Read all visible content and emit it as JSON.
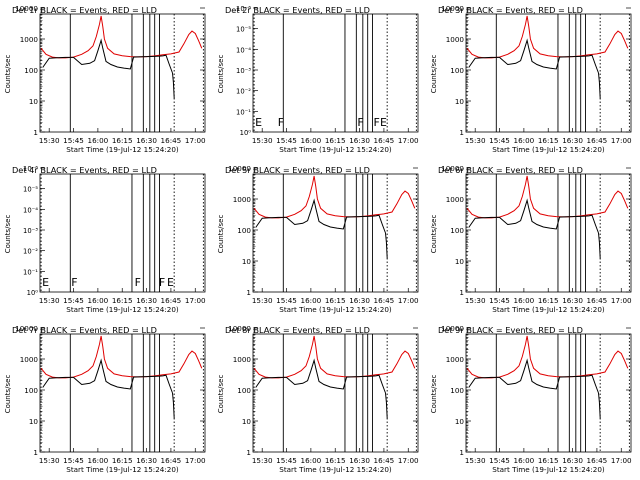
{
  "chart_data": [
    {
      "type": "line",
      "panel": 1,
      "title": "Det 1r BLACK = Events, RED = LLD",
      "ylabel": "Counts/sec",
      "xlabel": "Start Time (19-Jul-12 15:24:20)",
      "x_ticks": [
        "15:30",
        "15:45",
        "16:00",
        "16:15",
        "16:30",
        "16:45",
        "17:00"
      ],
      "y_ticks": [
        "1",
        "10",
        "100",
        "1000",
        "10000"
      ],
      "y_scale": "log",
      "ylim": [
        1,
        10000
      ],
      "xlim": [
        "15:24:20",
        "17:05"
      ],
      "has_data": true,
      "flags": [],
      "series": [
        {
          "name": "Events",
          "color": "#000000"
        },
        {
          "name": "LLD",
          "color": "#e00000"
        }
      ]
    },
    {
      "type": "line",
      "panel": 2,
      "title": "Det 2r BLACK = Events, RED = LLD",
      "ylabel": "Counts/sec",
      "xlabel": "Start Time (19-Jul-12 15:24:20)",
      "x_ticks": [
        "15:30",
        "15:45",
        "16:00",
        "16:15",
        "16:30",
        "16:45",
        "17:00"
      ],
      "y_ticks": [
        "10⁰",
        "10⁻¹",
        "10⁻²",
        "10⁻³",
        "10⁻⁴",
        "10⁻⁵",
        "10⁻⁶"
      ],
      "y_scale": "log",
      "has_data": false,
      "flags": [
        {
          "label": "E",
          "x": "15:25"
        },
        {
          "label": "F",
          "x": "15:39"
        },
        {
          "label": "F",
          "x": "16:28"
        },
        {
          "label": "F",
          "x": "16:38"
        },
        {
          "label": "E",
          "x": "16:42"
        }
      ],
      "series": []
    },
    {
      "type": "line",
      "panel": 3,
      "title": "Det 3r BLACK = Events, RED = LLD",
      "ylabel": "Counts/sec",
      "xlabel": "Start Time (19-Jul-12 15:24:20)",
      "x_ticks": [
        "15:30",
        "15:45",
        "16:00",
        "16:15",
        "16:30",
        "16:45",
        "17:00"
      ],
      "y_ticks": [
        "1",
        "10",
        "100",
        "1000",
        "10000"
      ],
      "y_scale": "log",
      "ylim": [
        1,
        10000
      ],
      "has_data": true,
      "flags": [],
      "series": [
        {
          "name": "Events",
          "color": "#000000"
        },
        {
          "name": "LLD",
          "color": "#e00000"
        }
      ]
    },
    {
      "type": "line",
      "panel": 4,
      "title": "Det 4r BLACK = Events, RED = LLD",
      "ylabel": "Counts/sec",
      "xlabel": "Start Time (19-Jul-12 15:24:20)",
      "x_ticks": [
        "15:30",
        "15:45",
        "16:00",
        "16:15",
        "16:30",
        "16:45",
        "17:00"
      ],
      "y_ticks": [
        "10⁰",
        "10⁻¹",
        "10⁻²",
        "10⁻³",
        "10⁻⁴",
        "10⁻⁵",
        "10⁻⁶"
      ],
      "y_scale": "log",
      "has_data": false,
      "flags": [
        {
          "label": "E",
          "x": "15:25"
        },
        {
          "label": "F",
          "x": "15:43"
        },
        {
          "label": "F",
          "x": "16:22"
        },
        {
          "label": "F",
          "x": "16:37"
        },
        {
          "label": "E",
          "x": "16:42"
        }
      ],
      "series": []
    },
    {
      "type": "line",
      "panel": 5,
      "title": "Det 5r BLACK = Events, RED = LLD",
      "ylabel": "Counts/sec",
      "xlabel": "Start Time (19-Jul-12 15:24:20)",
      "x_ticks": [
        "15:30",
        "15:45",
        "16:00",
        "16:15",
        "16:30",
        "16:45",
        "17:00"
      ],
      "y_ticks": [
        "1",
        "10",
        "100",
        "1000",
        "10000"
      ],
      "y_scale": "log",
      "ylim": [
        1,
        10000
      ],
      "has_data": true,
      "flags": [],
      "series": [
        {
          "name": "Events",
          "color": "#000000"
        },
        {
          "name": "LLD",
          "color": "#e00000"
        }
      ]
    },
    {
      "type": "line",
      "panel": 6,
      "title": "Det 6r BLACK = Events, RED = LLD",
      "ylabel": "Counts/sec",
      "xlabel": "Start Time (19-Jul-12 15:24:20)",
      "x_ticks": [
        "15:30",
        "15:45",
        "16:00",
        "16:15",
        "16:30",
        "16:45",
        "17:00"
      ],
      "y_ticks": [
        "1",
        "10",
        "100",
        "1000",
        "10000"
      ],
      "y_scale": "log",
      "ylim": [
        1,
        10000
      ],
      "has_data": true,
      "flags": [],
      "series": [
        {
          "name": "Events",
          "color": "#000000"
        },
        {
          "name": "LLD",
          "color": "#e00000"
        }
      ]
    },
    {
      "type": "line",
      "panel": 7,
      "title": "Det 7r BLACK = Events, RED = LLD",
      "ylabel": "Counts/sec",
      "xlabel": "Start Time (19-Jul-12 15:24:20)",
      "x_ticks": [
        "15:30",
        "15:45",
        "16:00",
        "16:15",
        "16:30",
        "16:45",
        "17:00"
      ],
      "y_ticks": [
        "1",
        "10",
        "100",
        "1000",
        "10000"
      ],
      "y_scale": "log",
      "ylim": [
        1,
        10000
      ],
      "has_data": true,
      "flags": [],
      "series": [
        {
          "name": "Events",
          "color": "#000000"
        },
        {
          "name": "LLD",
          "color": "#e00000"
        }
      ]
    },
    {
      "type": "line",
      "panel": 8,
      "title": "Det 8r BLACK = Events, RED = LLD",
      "ylabel": "Counts/sec",
      "xlabel": "Start Time (19-Jul-12 15:24:20)",
      "x_ticks": [
        "15:30",
        "15:45",
        "16:00",
        "16:15",
        "16:30",
        "16:45",
        "17:00"
      ],
      "y_ticks": [
        "1",
        "10",
        "100",
        "1000",
        "10000"
      ],
      "y_scale": "log",
      "ylim": [
        1,
        10000
      ],
      "has_data": true,
      "flags": [],
      "series": [
        {
          "name": "Events",
          "color": "#000000"
        },
        {
          "name": "LLD",
          "color": "#e00000"
        }
      ]
    },
    {
      "type": "line",
      "panel": 9,
      "title": "Det 9r BLACK = Events, RED = LLD",
      "ylabel": "Counts/sec",
      "xlabel": "Start Time (19-Jul-12 15:24:20)",
      "x_ticks": [
        "15:30",
        "15:45",
        "16:00",
        "16:15",
        "16:30",
        "16:45",
        "17:00"
      ],
      "y_ticks": [
        "1",
        "10",
        "100",
        "1000",
        "10000"
      ],
      "y_scale": "log",
      "ylim": [
        1,
        10000
      ],
      "has_data": true,
      "flags": [],
      "series": [
        {
          "name": "Events",
          "color": "#000000"
        },
        {
          "name": "LLD",
          "color": "#e00000"
        }
      ]
    }
  ],
  "shared": {
    "solid_verticals": [
      "15:43",
      "16:21",
      "16:28",
      "16:32",
      "16:35",
      "16:38"
    ],
    "dotted_verticals": [
      "15:25",
      "16:47",
      "17:05"
    ],
    "events_profile": {
      "t": [
        "15:26",
        "15:30",
        "15:35",
        "15:40",
        "15:45",
        "15:50",
        "15:55",
        "15:58",
        "16:00",
        "16:02",
        "16:03",
        "16:05",
        "16:08",
        "16:12",
        "16:16",
        "16:20",
        "16:22",
        "16:25",
        "16:30",
        "16:35",
        "16:38",
        "16:40",
        "16:42",
        "16:44",
        "16:46"
      ],
      "v": [
        120,
        240,
        250,
        255,
        255,
        150,
        165,
        200,
        420,
        900,
        500,
        190,
        150,
        125,
        115,
        108,
        260,
        265,
        270,
        275,
        280,
        285,
        300,
        150,
        80
      ]
    },
    "lld_profile": {
      "t": [
        "15:25",
        "15:28",
        "15:32",
        "15:36",
        "15:40",
        "15:45",
        "15:50",
        "15:54",
        "15:57",
        "15:59",
        "16:01",
        "16:02",
        "16:03",
        "16:04",
        "16:06",
        "16:10",
        "16:15",
        "16:20",
        "16:25",
        "16:30",
        "16:35",
        "16:40",
        "16:45",
        "16:50",
        "16:53",
        "16:56",
        "16:58",
        "17:00",
        "17:02",
        "17:04"
      ],
      "v": [
        500,
        320,
        260,
        245,
        245,
        260,
        320,
        420,
        600,
        1200,
        3000,
        5500,
        2500,
        1000,
        500,
        330,
        290,
        270,
        265,
        270,
        285,
        310,
        330,
        380,
        700,
        1400,
        1800,
        1500,
        900,
        500
      ]
    },
    "events_tail": {
      "t": [
        "16:46",
        "16:46:30",
        "16:47"
      ],
      "v": [
        80,
        40,
        12
      ]
    }
  }
}
